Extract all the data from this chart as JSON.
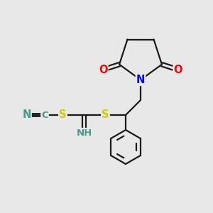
{
  "bg_color": "#e8e8e8",
  "bond_color": "#1a1a1a",
  "atom_colors": {
    "N": "#0000ff",
    "O": "#ff0000",
    "S": "#cccc00",
    "C_nitrile": "#4a9a8a",
    "N_imine": "#4a9a8a"
  },
  "font_size": 9.5,
  "lw": 1.6
}
